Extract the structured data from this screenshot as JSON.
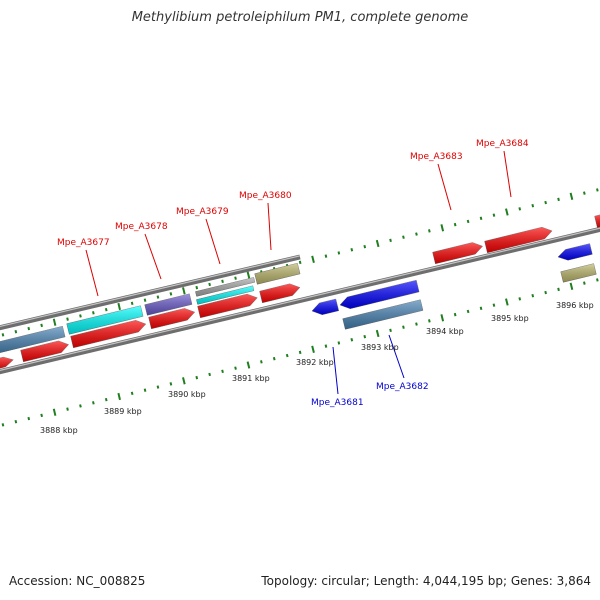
{
  "title": "Methylibium petroleiphilum PM1, complete genome",
  "footer": {
    "accession": "Accession: NC_008825",
    "summary": "Topology: circular; Length: 4,044,195 bp; Genes: 3,864"
  },
  "colors": {
    "cds_red": "#ff0000",
    "cds_blue": "#0000ff",
    "label_red": "#dd0000",
    "label_blue": "#0000cc",
    "tick_green": "#1f7f1f",
    "steel_blue": "#4682b4",
    "cyan": "#00ffff",
    "slate_purple": "#6a5acd",
    "grey": "#a9a9a9",
    "khaki": "#bdb76b"
  },
  "kbp_labels": [
    "3888 kbp",
    "3889 kbp",
    "3890 kbp",
    "3891 kbp",
    "3892 kbp",
    "3893 kbp",
    "3894 kbp",
    "3895 kbp",
    "3896 kbp"
  ],
  "gene_labels": [
    {
      "text": "Mpe_A3677",
      "strand": "forward"
    },
    {
      "text": "Mpe_A3678",
      "strand": "forward"
    },
    {
      "text": "Mpe_A3679",
      "strand": "forward"
    },
    {
      "text": "Mpe_A3680",
      "strand": "forward"
    },
    {
      "text": "Mpe_A3683",
      "strand": "forward"
    },
    {
      "text": "Mpe_A3684",
      "strand": "forward"
    },
    {
      "text": "Mpe_A3681",
      "strand": "reverse"
    },
    {
      "text": "Mpe_A3682",
      "strand": "reverse"
    }
  ]
}
